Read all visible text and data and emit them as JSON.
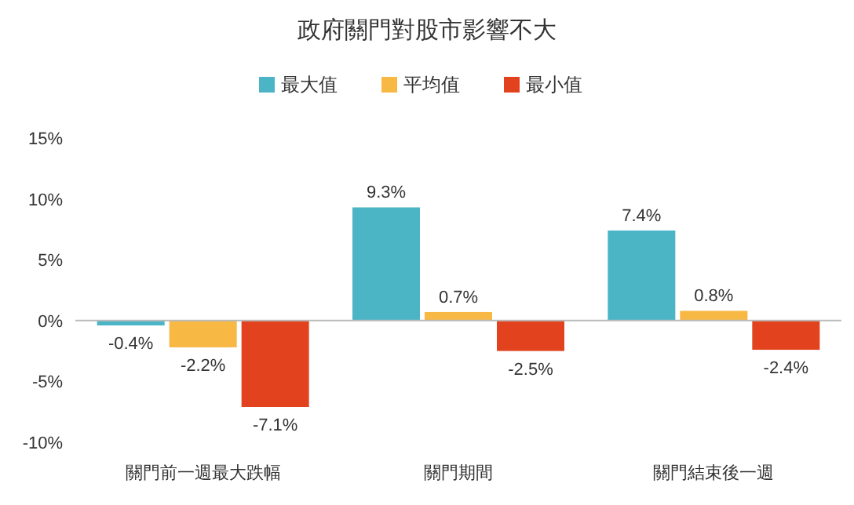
{
  "chart_data": {
    "type": "bar",
    "title": "政府關門對股市影響不大",
    "categories": [
      "關門前一週最大跌幅",
      "關門期間",
      "關門結束後一週"
    ],
    "series": [
      {
        "name": "最大值",
        "color": "#4bb5c6",
        "values": [
          -0.4,
          9.3,
          7.4
        ],
        "value_labels": [
          "-0.4%",
          "9.3%",
          "7.4%"
        ]
      },
      {
        "name": "平均值",
        "color": "#f7b844",
        "values": [
          -2.2,
          0.7,
          0.8
        ],
        "value_labels": [
          "-2.2%",
          "0.7%",
          "0.8%"
        ]
      },
      {
        "name": "最小值",
        "color": "#e2431e",
        "values": [
          -7.1,
          -2.5,
          -2.4
        ],
        "value_labels": [
          "-7.1%",
          "-2.5%",
          "-2.4%"
        ]
      }
    ],
    "ylim": [
      -10,
      15
    ],
    "yticks": [
      {
        "value": -10,
        "label": "-10%"
      },
      {
        "value": -5,
        "label": "-5%"
      },
      {
        "value": 0,
        "label": "0%"
      },
      {
        "value": 5,
        "label": "5%"
      },
      {
        "value": 10,
        "label": "10%"
      },
      {
        "value": 15,
        "label": "15%"
      }
    ],
    "legend": "top"
  }
}
